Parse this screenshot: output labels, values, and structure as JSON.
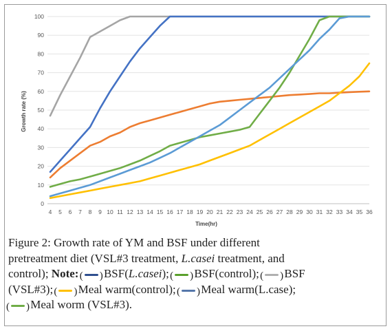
{
  "chart_data": {
    "type": "line",
    "xlabel": "Time(hr)",
    "ylabel": "Growth rate (%)",
    "xlim": [
      4,
      36
    ],
    "ylim": [
      0,
      100
    ],
    "x_ticks": [
      "4",
      "5",
      "6",
      "7",
      "8",
      "9",
      "10",
      "11",
      "12",
      "13",
      "14",
      "15",
      "16",
      "17",
      "18",
      "19",
      "20",
      "21",
      "22",
      "23",
      "24",
      "25",
      "26",
      "27",
      "28",
      "29",
      "30",
      "31",
      "32",
      "33",
      "34",
      "35",
      "36"
    ],
    "y_ticks": [
      "0",
      "10",
      "20",
      "30",
      "40",
      "50",
      "60",
      "70",
      "80",
      "90",
      "100"
    ],
    "grid": "horizontal",
    "series": [
      {
        "color": "#a5a5a5",
        "x": [
          4,
          5,
          6,
          7,
          8,
          9,
          10,
          11,
          12,
          13,
          36
        ],
        "y": [
          47,
          58,
          68,
          78,
          89,
          92,
          95,
          98,
          100,
          100,
          100
        ]
      },
      {
        "color": "#4472c4",
        "x": [
          4,
          5,
          6,
          7,
          8,
          9,
          10,
          11,
          12,
          13,
          14,
          15,
          16,
          17,
          36
        ],
        "y": [
          17,
          23,
          29,
          35,
          41,
          51,
          60,
          68,
          76,
          83,
          89,
          95,
          100,
          100,
          100
        ]
      },
      {
        "color": "#ed7d31",
        "x": [
          4,
          5,
          6,
          7,
          8,
          9,
          10,
          11,
          12,
          13,
          14,
          15,
          16,
          17,
          18,
          19,
          20,
          21,
          22,
          23,
          24,
          25,
          26,
          27,
          28,
          29,
          30,
          31,
          32,
          33,
          34,
          35,
          36
        ],
        "y": [
          14,
          19,
          23,
          27,
          31,
          33,
          36,
          38,
          41,
          43,
          44.5,
          46,
          47.5,
          49,
          50.5,
          52,
          53.5,
          54.5,
          55,
          55.5,
          56,
          56.5,
          57,
          57.5,
          58,
          58.3,
          58.6,
          59,
          59,
          59.3,
          59.6,
          59.8,
          60
        ]
      },
      {
        "color": "#70ad47",
        "x": [
          4,
          5,
          6,
          7,
          8,
          9,
          10,
          11,
          12,
          13,
          14,
          15,
          16,
          17,
          18,
          19,
          20,
          21,
          22,
          23,
          24,
          25,
          26,
          27,
          28,
          29,
          30,
          31,
          32,
          33,
          34,
          35,
          36
        ],
        "y": [
          9,
          10.5,
          12,
          13,
          14.5,
          16,
          17.5,
          19,
          21,
          23,
          25.5,
          28,
          31,
          32.5,
          34,
          35.5,
          36.5,
          37.5,
          38.5,
          39.5,
          41,
          48,
          55,
          62,
          70,
          79,
          88,
          98,
          100,
          100,
          100,
          100,
          100
        ]
      },
      {
        "color": "#5b9bd5",
        "x": [
          4,
          5,
          6,
          7,
          8,
          9,
          10,
          11,
          12,
          13,
          14,
          15,
          16,
          17,
          18,
          19,
          20,
          21,
          22,
          23,
          24,
          25,
          26,
          27,
          28,
          29,
          30,
          31,
          32,
          33,
          34,
          35,
          36
        ],
        "y": [
          4,
          5.5,
          7,
          8.5,
          10,
          12,
          14,
          16,
          18,
          20,
          22,
          24.5,
          27,
          30,
          33,
          36,
          39,
          42,
          46,
          50,
          54,
          58,
          62,
          67,
          72,
          77,
          82,
          88,
          93,
          99,
          100,
          100,
          100
        ]
      },
      {
        "color": "#ffc000",
        "x": [
          4,
          5,
          6,
          7,
          8,
          9,
          10,
          11,
          12,
          13,
          14,
          15,
          16,
          17,
          18,
          19,
          20,
          21,
          22,
          23,
          24,
          25,
          26,
          27,
          28,
          29,
          30,
          31,
          32,
          33,
          34,
          35,
          36
        ],
        "y": [
          3,
          4,
          5,
          6,
          7,
          8,
          9,
          10,
          11,
          12,
          13.5,
          15,
          16.5,
          18,
          19.5,
          21,
          23,
          25,
          27,
          29,
          31,
          34,
          37,
          40,
          43,
          46,
          49,
          52,
          55,
          59,
          63,
          68,
          75
        ]
      }
    ]
  },
  "caption": {
    "line1": "Figure 2: Growth rate of YM and BSF under different",
    "l2a": "pretreatment diet (VSL#3 treatment, ",
    "l2b": "L.casei",
    "l2c": " treatment, and",
    "l3a": "control); ",
    "l3b": "Note:",
    "l3c": " BSF(",
    "l3d": "L.casei",
    "l3e": "); ",
    "l3f": " BSF(control); ",
    "l3g": " BSF",
    "l4a": "(VSL#3); ",
    "l4b": " Meal warm(control); ",
    "l4c": " Meal warm(L.case);",
    "l5a": " Meal worm (VSL#3).",
    "key_colors": [
      "#2f4f8f",
      "#5aa02c",
      "#b0b0b0",
      "#ffc000",
      "#5577aa",
      "#70ad47"
    ]
  }
}
